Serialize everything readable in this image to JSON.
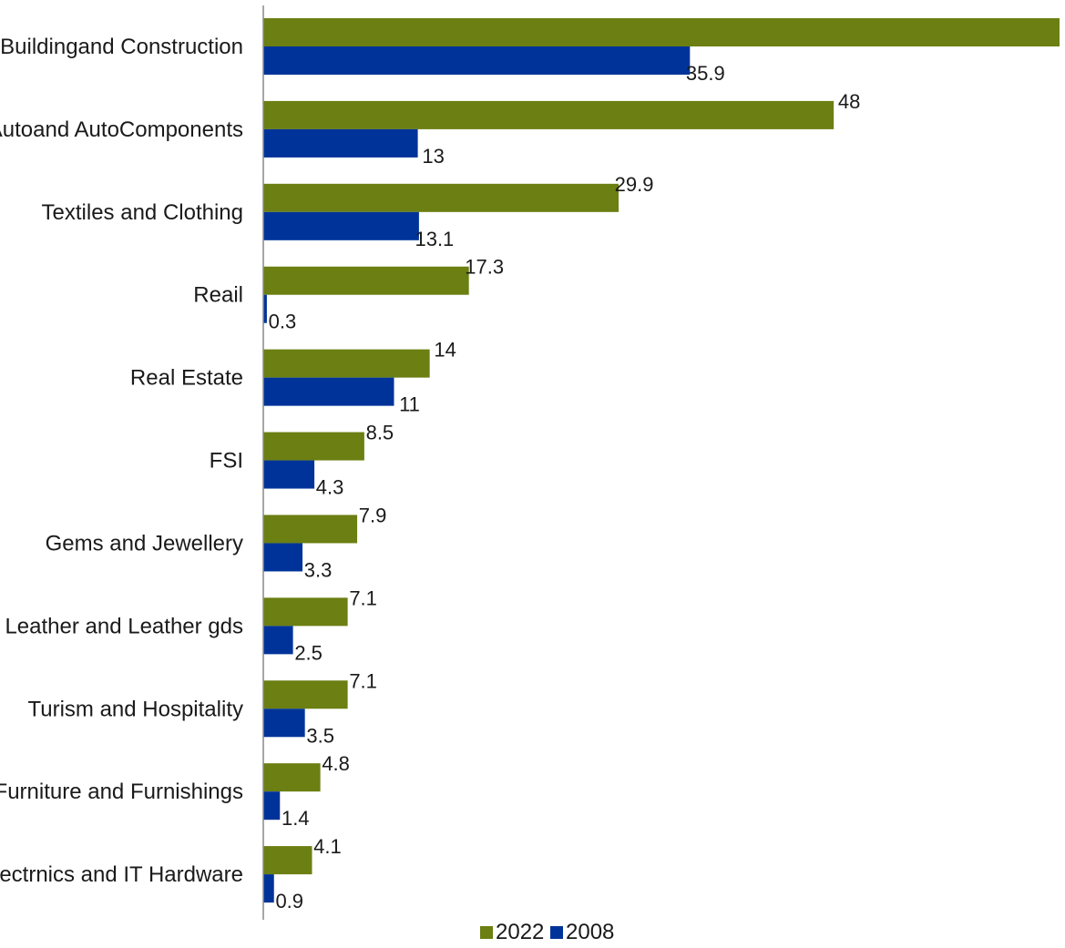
{
  "chart_data": {
    "type": "bar",
    "orientation": "horizontal",
    "categories": [
      "Buildingand Construction",
      "Autoand AutoComponents",
      "Textiles and Clothing",
      "Reail",
      "Real Estate",
      "FSI",
      "Gems and Jewellery",
      "Leather and Leather gds",
      "Turism and Hospitality",
      "Furniture and Furnishings",
      "Electrnics and IT Hardware"
    ],
    "series": [
      {
        "name": "2022",
        "color": "#6b7f12",
        "values": [
          67,
          48,
          29.9,
          17.3,
          14,
          8.5,
          7.9,
          7.1,
          7.1,
          4.8,
          4.1
        ],
        "labels": [
          "",
          "48",
          "29.9",
          "17.3",
          "14",
          "8.5",
          "7.9",
          "7.1",
          "7.1",
          "4.8",
          "4.1"
        ]
      },
      {
        "name": "2008",
        "color": "#003399",
        "values": [
          35.9,
          13,
          13.1,
          0.3,
          11,
          4.3,
          3.3,
          2.5,
          3.5,
          1.4,
          0.9
        ],
        "labels": [
          "35.9",
          "13",
          "13.1",
          "0.3",
          "11",
          "4.3",
          "3.3",
          "2.5",
          "3.5",
          "1.4",
          "0.9"
        ]
      }
    ],
    "title": "",
    "xlabel": "",
    "ylabel": "",
    "xlim": [
      0,
      67
    ],
    "grid": false,
    "legend": "bottom"
  }
}
